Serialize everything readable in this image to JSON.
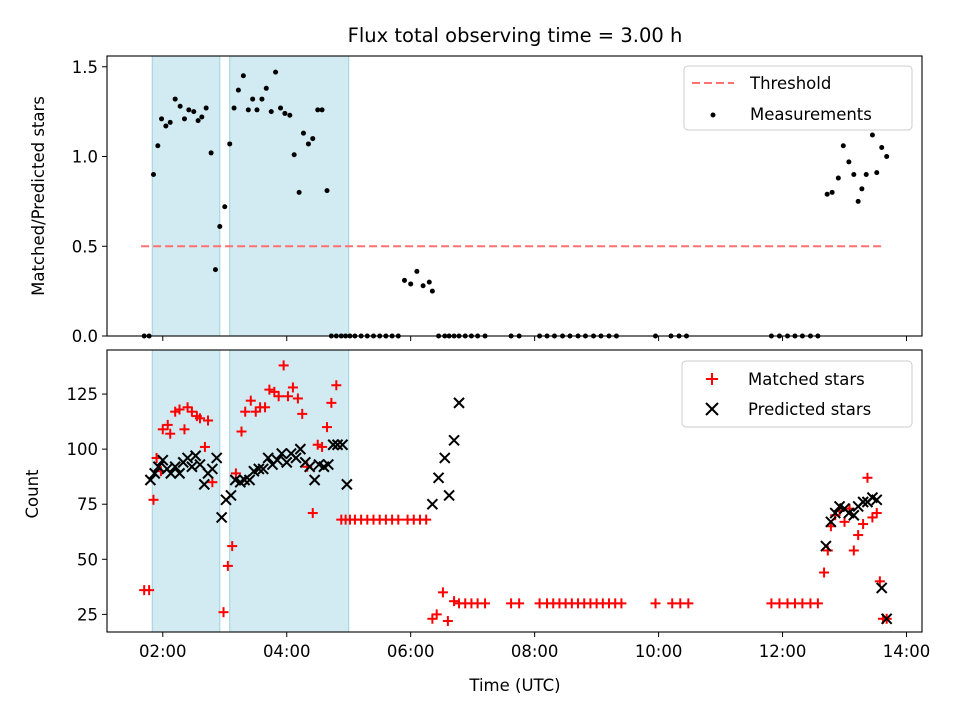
{
  "chart_data": [
    {
      "type": "scatter",
      "title": "Flux total observing time = 3.00 h",
      "ylabel": "Matched/Predicted stars",
      "xlim": [
        1.1,
        14.25
      ],
      "ylim": [
        0.0,
        1.56
      ],
      "yticks": [
        "0.0",
        "0.5",
        "1.0",
        "1.5"
      ],
      "ytick_values": [
        0,
        0.5,
        1.0,
        1.5
      ],
      "shaded_intervals": [
        [
          1.83,
          2.92
        ],
        [
          3.08,
          5.0
        ]
      ],
      "shade_color": "#add8e6",
      "legend_placement": "top-right",
      "series": [
        {
          "name": "Threshold",
          "kind": "dashed-line",
          "color": "#ff7070",
          "x": [
            1.65,
            13.65
          ],
          "y": [
            0.5,
            0.5
          ]
        },
        {
          "name": "Measurements",
          "kind": "dot",
          "color": "#000000",
          "x": [
            1.7,
            1.78,
            1.85,
            1.92,
            1.98,
            2.05,
            2.12,
            2.2,
            2.28,
            2.35,
            2.42,
            2.5,
            2.57,
            2.63,
            2.7,
            2.78,
            2.85,
            2.92,
            3.0,
            3.08,
            3.15,
            3.22,
            3.3,
            3.38,
            3.45,
            3.52,
            3.6,
            3.67,
            3.75,
            3.82,
            3.9,
            3.97,
            4.05,
            4.12,
            4.2,
            4.27,
            4.35,
            4.42,
            4.5,
            4.57,
            4.65,
            4.72,
            4.8,
            4.88,
            4.95,
            5.02,
            5.1,
            5.2,
            5.3,
            5.4,
            5.5,
            5.6,
            5.7,
            5.8,
            5.9,
            6.0,
            6.1,
            6.2,
            6.3,
            6.35,
            6.45,
            6.55,
            6.62,
            6.7,
            6.78,
            6.88,
            6.98,
            7.08,
            7.2,
            7.62,
            7.75,
            8.08,
            8.2,
            8.32,
            8.45,
            8.57,
            8.7,
            8.82,
            8.95,
            9.07,
            9.2,
            9.32,
            9.95,
            10.2,
            10.33,
            10.45,
            11.82,
            11.95,
            12.08,
            12.2,
            12.32,
            12.45,
            12.57,
            12.72,
            12.8,
            12.9,
            12.98,
            13.07,
            13.15,
            13.22,
            13.28,
            13.35,
            13.45,
            13.52,
            13.6,
            13.68
          ],
          "y": [
            0.0,
            0.0,
            0.9,
            1.06,
            1.21,
            1.17,
            1.19,
            1.32,
            1.28,
            1.21,
            1.26,
            1.25,
            1.2,
            1.22,
            1.27,
            1.02,
            0.37,
            0.61,
            0.72,
            1.07,
            1.27,
            1.37,
            1.45,
            1.26,
            1.32,
            1.26,
            1.32,
            1.38,
            1.25,
            1.47,
            1.27,
            1.24,
            1.23,
            1.01,
            0.8,
            1.13,
            1.07,
            1.1,
            1.26,
            1.26,
            0.81,
            0.0,
            0.0,
            0.0,
            0.0,
            0.0,
            0.0,
            0.0,
            0.0,
            0.0,
            0.0,
            0.0,
            0.0,
            0.0,
            0.31,
            0.29,
            0.36,
            0.28,
            0.3,
            0.25,
            0.0,
            0.0,
            0.0,
            0.0,
            0.0,
            0.0,
            0.0,
            0.0,
            0.0,
            0.0,
            0.0,
            0.0,
            0.0,
            0.0,
            0.0,
            0.0,
            0.0,
            0.0,
            0.0,
            0.0,
            0.0,
            0.0,
            0.0,
            0.0,
            0.0,
            0.0,
            0.0,
            0.0,
            0.0,
            0.0,
            0.0,
            0.0,
            0.0,
            0.79,
            0.8,
            0.88,
            1.06,
            0.97,
            0.9,
            0.75,
            0.82,
            0.9,
            1.12,
            0.91,
            1.05,
            1.0
          ]
        }
      ]
    },
    {
      "type": "scatter",
      "xlabel": "Time (UTC)",
      "ylabel": "Count",
      "xlim": [
        1.1,
        14.25
      ],
      "ylim": [
        17,
        145
      ],
      "xticks": [
        "02:00",
        "04:00",
        "06:00",
        "08:00",
        "10:00",
        "12:00",
        "14:00"
      ],
      "xtick_values": [
        2,
        4,
        6,
        8,
        10,
        12,
        14
      ],
      "yticks": [
        "25",
        "50",
        "75",
        "100",
        "125"
      ],
      "ytick_values": [
        25,
        50,
        75,
        100,
        125
      ],
      "shaded_intervals": [
        [
          1.83,
          2.92
        ],
        [
          3.08,
          5.0
        ]
      ],
      "shade_color": "#add8e6",
      "legend_placement": "top-right",
      "series": [
        {
          "name": "Matched stars",
          "kind": "plus",
          "color": "#ff0000",
          "x": [
            1.7,
            1.78,
            1.85,
            1.9,
            1.97,
            2.0,
            2.08,
            2.12,
            2.2,
            2.27,
            2.35,
            2.4,
            2.47,
            2.55,
            2.6,
            2.68,
            2.73,
            2.8,
            2.98,
            3.05,
            3.12,
            3.18,
            3.27,
            3.33,
            3.42,
            3.5,
            3.57,
            3.65,
            3.72,
            3.8,
            3.87,
            3.95,
            4.02,
            4.1,
            4.18,
            4.25,
            4.33,
            4.42,
            4.5,
            4.57,
            4.65,
            4.72,
            4.8,
            4.88,
            4.95,
            5.02,
            5.1,
            5.2,
            5.3,
            5.4,
            5.5,
            5.6,
            5.7,
            5.8,
            5.95,
            6.05,
            6.15,
            6.25,
            6.35,
            6.42,
            6.52,
            6.6,
            6.7,
            6.78,
            6.88,
            6.98,
            7.08,
            7.2,
            7.62,
            7.75,
            8.08,
            8.2,
            8.3,
            8.4,
            8.5,
            8.6,
            8.7,
            8.8,
            8.9,
            9.0,
            9.1,
            9.2,
            9.3,
            9.4,
            9.95,
            10.22,
            10.35,
            10.48,
            11.82,
            11.95,
            12.08,
            12.2,
            12.32,
            12.45,
            12.57,
            12.67,
            12.73,
            12.78,
            12.85,
            12.92,
            13.0,
            13.08,
            13.15,
            13.22,
            13.3,
            13.37,
            13.45,
            13.52,
            13.57,
            13.62,
            13.68
          ],
          "y": [
            36,
            36,
            77,
            96,
            90,
            109,
            111,
            107,
            117,
            118,
            109,
            119,
            117,
            115,
            114,
            101,
            113,
            85,
            26,
            47,
            56,
            89,
            108,
            117,
            122,
            117,
            119,
            119,
            127,
            126,
            124,
            138,
            124,
            128,
            123,
            116,
            92,
            71,
            102,
            101,
            110,
            121,
            129,
            68,
            68,
            68,
            68,
            68,
            68,
            68,
            68,
            68,
            68,
            68,
            68,
            68,
            68,
            68,
            23,
            25,
            35,
            22,
            31,
            30,
            30,
            30,
            30,
            30,
            30,
            30,
            30,
            30,
            30,
            30,
            30,
            30,
            30,
            30,
            30,
            30,
            30,
            30,
            30,
            30,
            30,
            30,
            30,
            30,
            30,
            30,
            30,
            30,
            30,
            30,
            30,
            44,
            54,
            65,
            70,
            72,
            67,
            73,
            54,
            61,
            66,
            87,
            69,
            71,
            40,
            23,
            23
          ],
          "note_placeholder": ""
        },
        {
          "name": "Predicted stars",
          "kind": "x",
          "color": "#000000",
          "x": [
            1.8,
            1.87,
            1.93,
            2.0,
            2.07,
            2.13,
            2.2,
            2.27,
            2.33,
            2.4,
            2.47,
            2.53,
            2.6,
            2.67,
            2.73,
            2.8,
            2.87,
            2.95,
            3.02,
            3.1,
            3.17,
            3.25,
            3.32,
            3.4,
            3.47,
            3.55,
            3.62,
            3.7,
            3.77,
            3.85,
            3.92,
            4.0,
            4.07,
            4.15,
            4.22,
            4.3,
            4.37,
            4.45,
            4.52,
            4.6,
            4.67,
            4.75,
            4.82,
            4.9,
            4.97,
            6.35,
            6.45,
            6.55,
            6.62,
            6.7,
            6.78,
            12.7,
            12.78,
            12.85,
            12.92,
            13.0,
            13.07,
            13.15,
            13.22,
            13.3,
            13.37,
            13.45,
            13.52,
            13.6,
            13.68
          ],
          "y": [
            86,
            89,
            92,
            95,
            91,
            89,
            92,
            89,
            94,
            96,
            92,
            97,
            93,
            84,
            89,
            91,
            96,
            69,
            77,
            79,
            86,
            85,
            86,
            86,
            90,
            91,
            91,
            96,
            93,
            95,
            98,
            94,
            98,
            96,
            100,
            94,
            92,
            86,
            93,
            92,
            93,
            102,
            102,
            102,
            84,
            75,
            87,
            96,
            79,
            104,
            121,
            56,
            67,
            71,
            74,
            73,
            71,
            70,
            74,
            76,
            76,
            78,
            77,
            37,
            23
          ]
        }
      ]
    }
  ]
}
